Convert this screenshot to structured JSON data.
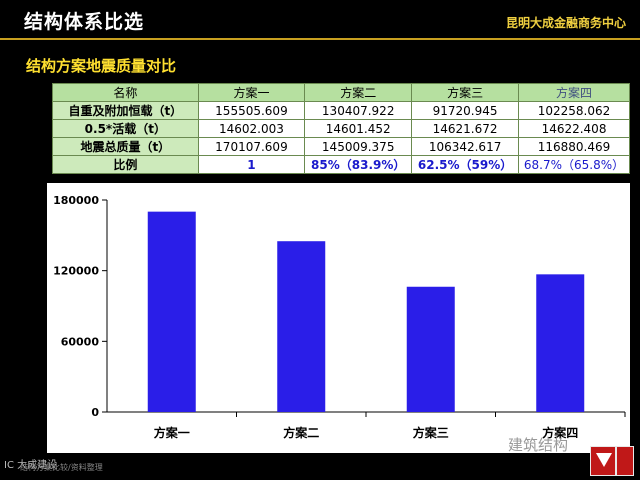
{
  "header": {
    "title": "结构体系比选",
    "org": "昆明大成金融商务中心"
  },
  "section_title": "结构方案地震质量对比",
  "table": {
    "headers": [
      "名称",
      "方案一",
      "方案二",
      "方案三",
      "方案四"
    ],
    "rows": [
      {
        "label": "自重及附加恒载（t）",
        "values": [
          "155505.609",
          "130407.922",
          "91720.945",
          "102258.062"
        ]
      },
      {
        "label": "0.5*活载（t）",
        "values": [
          "14602.003",
          "14601.452",
          "14621.672",
          "14622.408"
        ]
      },
      {
        "label": "地震总质量（t）",
        "values": [
          "170107.609",
          "145009.375",
          "106342.617",
          "116880.469"
        ]
      },
      {
        "label": "比例",
        "values": [
          "1",
          "85%（83.9%）",
          "62.5%（59%）",
          "68.7%（65.8%）"
        ]
      }
    ]
  },
  "chart_data": {
    "type": "bar",
    "categories": [
      "方案一",
      "方案二",
      "方案三",
      "方案四"
    ],
    "values": [
      170107.609,
      145009.375,
      106342.617,
      116880.469
    ],
    "ylim": [
      0,
      180000
    ],
    "yticks": [
      "0",
      "60000",
      "120000",
      "180000"
    ],
    "ytick_values": [
      0,
      60000,
      120000,
      180000
    ],
    "grid": false,
    "bar_color": "#2a1ee8"
  },
  "footer": {
    "left": "IC 大成建设",
    "note": "结构方案比较/资料整理",
    "watermark": "建筑结构"
  }
}
